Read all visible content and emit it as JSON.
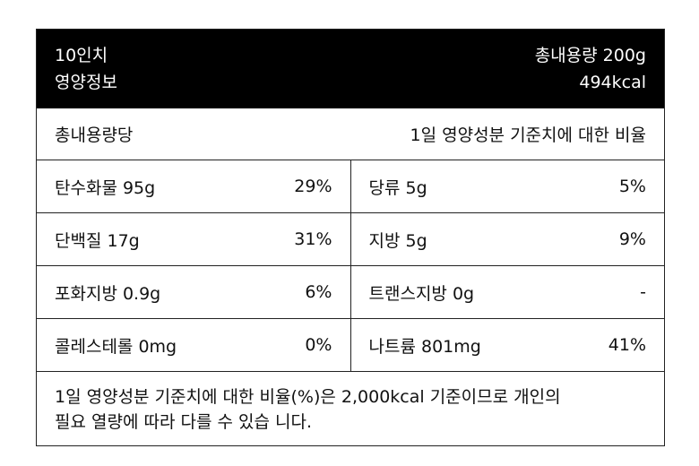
{
  "header": {
    "title": "10인치",
    "subtitle": "영양정보",
    "total": "총내용량 200g",
    "kcal": "494kcal"
  },
  "basis": {
    "left": "총내용량당",
    "right": "1일 영양성분 기준치에 대한 비율"
  },
  "table": {
    "rows": [
      [
        {
          "name": "탄수화물 95g",
          "pct": "29%"
        },
        {
          "name": "당류 5g",
          "pct": "5%"
        }
      ],
      [
        {
          "name": "단백질 17g",
          "pct": "31%"
        },
        {
          "name": "지방 5g",
          "pct": "9%"
        }
      ],
      [
        {
          "name": "포화지방 0.9g",
          "pct": "6%"
        },
        {
          "name": "트랜스지방 0g",
          "pct": "-"
        }
      ],
      [
        {
          "name": "콜레스테롤 0mg",
          "pct": "0%"
        },
        {
          "name": "나트륨 801mg",
          "pct": "41%"
        }
      ]
    ]
  },
  "footnote": [
    "1일 영양성분 기준치에 대한 비율(%)은 2,000kcal 기준이므로 개인의",
    "필요 열량에 따라 다를 수 있습 니다."
  ]
}
